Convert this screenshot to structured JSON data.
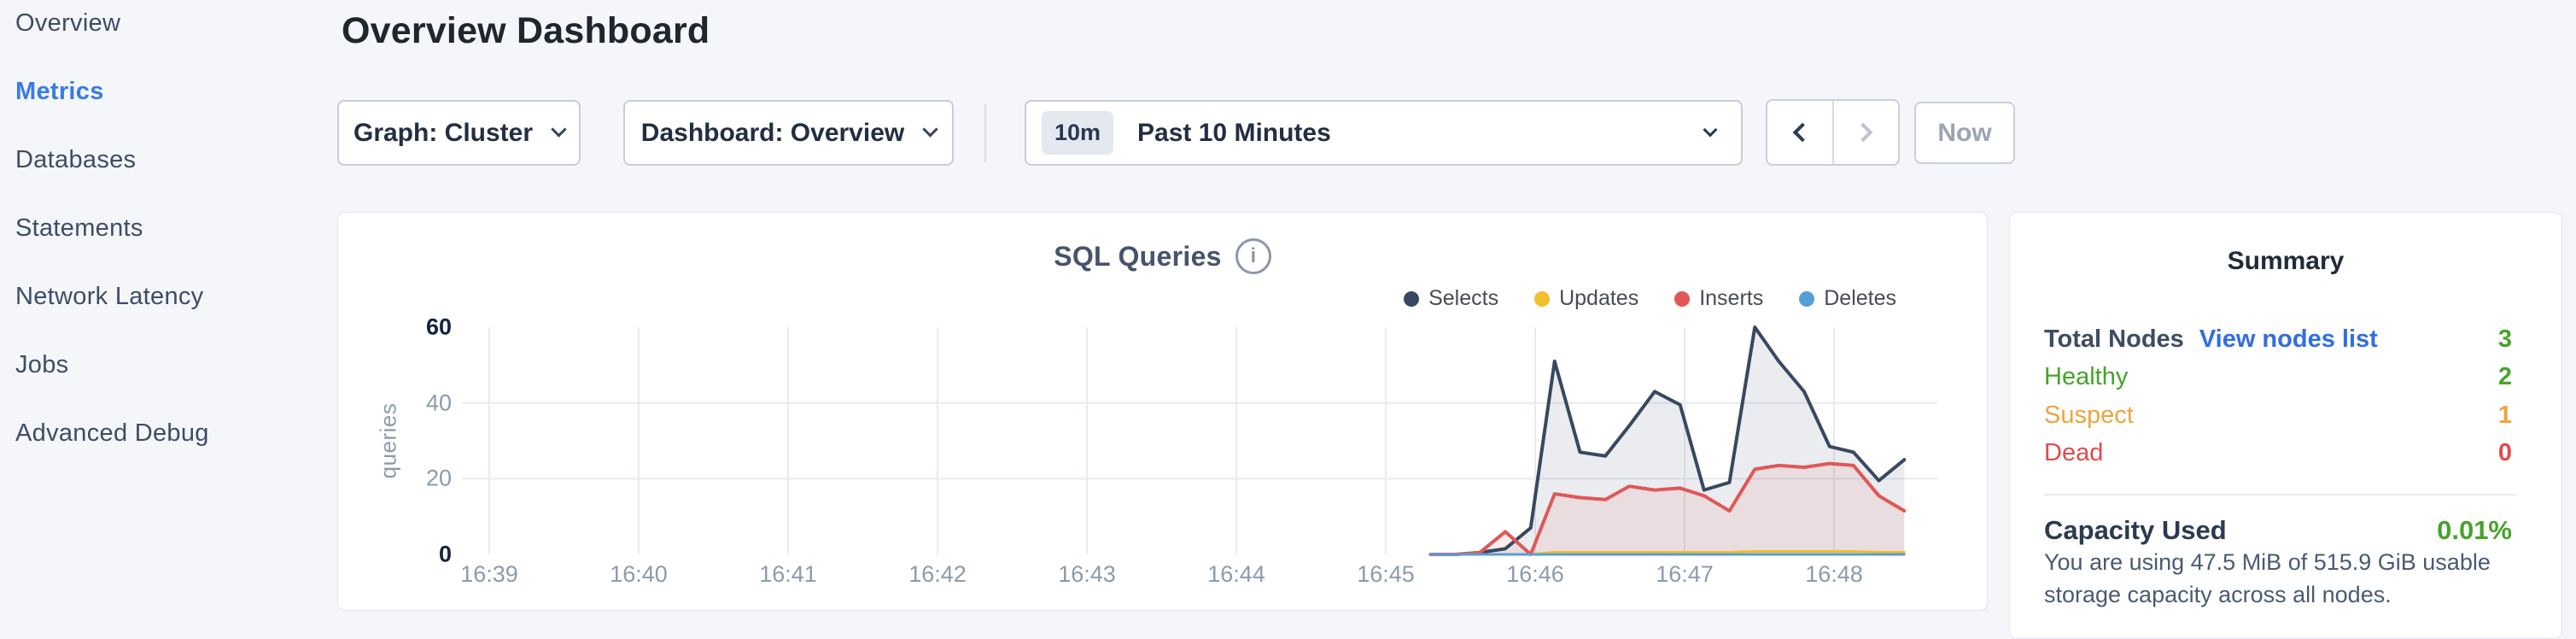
{
  "sidebar": {
    "items": [
      {
        "label": "Overview",
        "active": false
      },
      {
        "label": "Metrics",
        "active": true
      },
      {
        "label": "Databases",
        "active": false
      },
      {
        "label": "Statements",
        "active": false
      },
      {
        "label": "Network Latency",
        "active": false
      },
      {
        "label": "Jobs",
        "active": false
      },
      {
        "label": "Advanced Debug",
        "active": false
      }
    ]
  },
  "header": {
    "title": "Overview Dashboard"
  },
  "controls": {
    "graph_dropdown": {
      "value": "Graph: Cluster"
    },
    "dashboard_dropdown": {
      "value": "Dashboard: Overview"
    },
    "time_selector": {
      "badge": "10m",
      "label": "Past 10 Minutes"
    },
    "now_button": "Now"
  },
  "chart_data": {
    "type": "area",
    "title": "SQL Queries",
    "ylabel": "queries",
    "ylim": [
      0,
      60
    ],
    "yticks": [
      60,
      40,
      20,
      0
    ],
    "ygrid": [
      40,
      20
    ],
    "grid": true,
    "legend_position": "top-right",
    "xticks": [
      "16:39",
      "16:40",
      "16:41",
      "16:42",
      "16:43",
      "16:44",
      "16:45",
      "16:46",
      "16:47",
      "16:48"
    ],
    "x_unit": "minutes after 16:39",
    "x": [
      6.3,
      6.47,
      6.63,
      6.8,
      6.97,
      7.13,
      7.3,
      7.47,
      7.63,
      7.8,
      7.97,
      8.13,
      8.3,
      8.47,
      8.63,
      8.8,
      8.97,
      9.13,
      9.3,
      9.47
    ],
    "series": [
      {
        "name": "Selects",
        "color": "#394860",
        "fill": "rgba(57,72,96,0.10)",
        "width": 4,
        "values": [
          0,
          0,
          0.5,
          1.5,
          7,
          51,
          27,
          26,
          34,
          43,
          39.5,
          17,
          19,
          60,
          51,
          43,
          28.5,
          27,
          19.5,
          25
        ]
      },
      {
        "name": "Updates",
        "color": "#f2be2d",
        "fill": "none",
        "width": 3,
        "values": [
          0,
          0,
          0,
          0,
          0,
          0.6,
          0.6,
          0.6,
          0.6,
          0.6,
          0.6,
          0.6,
          0.6,
          0.8,
          0.8,
          0.8,
          0.8,
          0.8,
          0.6,
          0.6
        ]
      },
      {
        "name": "Inserts",
        "color": "#e05757",
        "fill": "rgba(224,87,87,0.10)",
        "width": 4,
        "values": [
          0,
          0,
          0.5,
          6,
          0,
          16,
          15,
          14.5,
          18,
          17,
          17.5,
          15.5,
          11.5,
          22.5,
          23.5,
          23,
          24,
          23.5,
          15.5,
          11.5
        ]
      },
      {
        "name": "Deletes",
        "color": "#569fd6",
        "fill": "none",
        "width": 3,
        "values": [
          0,
          0,
          0,
          0,
          0,
          0,
          0,
          0,
          0,
          0,
          0,
          0,
          0,
          0,
          0,
          0,
          0,
          0,
          0,
          0
        ]
      }
    ]
  },
  "summary": {
    "title": "Summary",
    "rows": [
      {
        "label": "Total Nodes",
        "link": "View nodes list",
        "value": "3",
        "value_color": "#47a32a"
      },
      {
        "label": "Healthy",
        "value": "2",
        "label_color": "#47a32a",
        "value_color": "#47a32a"
      },
      {
        "label": "Suspect",
        "value": "1",
        "label_color": "#efa33d",
        "value_color": "#efa33d"
      },
      {
        "label": "Dead",
        "value": "0",
        "label_color": "#e34a4a",
        "value_color": "#e34a4a"
      }
    ],
    "capacity": {
      "label": "Capacity Used",
      "value": "0.01%",
      "value_color": "#47a32a",
      "description": "You are using 47.5 MiB of 515.9 GiB usable storage capacity across all nodes."
    }
  }
}
